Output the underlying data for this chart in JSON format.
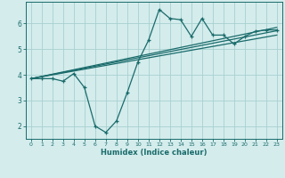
{
  "title": "",
  "xlabel": "Humidex (Indice chaleur)",
  "background_color": "#d4ecec",
  "line_color": "#1a6b6b",
  "xlim": [
    -0.5,
    23.5
  ],
  "ylim": [
    1.5,
    6.85
  ],
  "xticks": [
    0,
    1,
    2,
    3,
    4,
    5,
    6,
    7,
    8,
    9,
    10,
    11,
    12,
    13,
    14,
    15,
    16,
    17,
    18,
    19,
    20,
    21,
    22,
    23
  ],
  "yticks": [
    2,
    3,
    4,
    5,
    6
  ],
  "grid_color": "#a8d0d0",
  "main_x": [
    0,
    1,
    2,
    3,
    4,
    5,
    6,
    7,
    8,
    9,
    10,
    11,
    12,
    13,
    14,
    15,
    16,
    17,
    18,
    19,
    20,
    21,
    22,
    23
  ],
  "main_y": [
    3.85,
    3.85,
    3.85,
    3.75,
    4.05,
    3.5,
    2.0,
    1.75,
    2.2,
    3.3,
    4.5,
    5.35,
    6.55,
    6.2,
    6.15,
    5.5,
    6.2,
    5.55,
    5.55,
    5.2,
    5.5,
    5.7,
    5.75,
    5.75
  ],
  "line1_x": [
    0,
    23
  ],
  "line1_y": [
    3.85,
    5.72
  ],
  "line2_x": [
    0,
    23
  ],
  "line2_y": [
    3.85,
    5.85
  ],
  "line3_x": [
    0,
    23
  ],
  "line3_y": [
    3.85,
    5.55
  ]
}
